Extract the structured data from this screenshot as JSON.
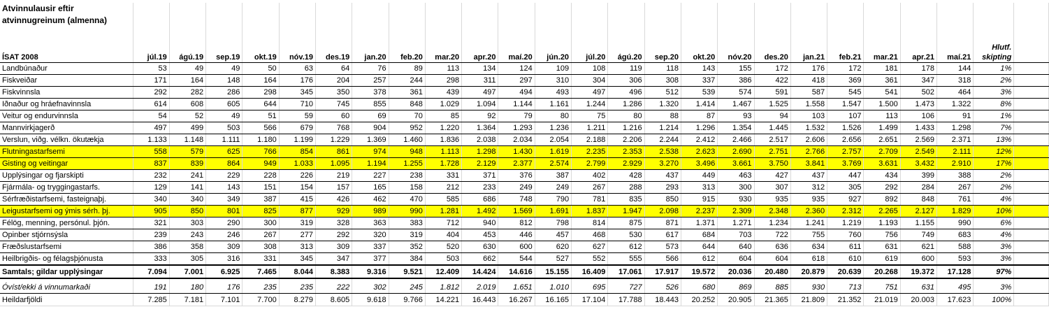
{
  "table": {
    "title": "Atvinnulausir eftir atvinnugreinum (almenna)",
    "row_header": "ÍSAT 2008",
    "columns": [
      "júl.19",
      "ágú.19",
      "sep.19",
      "okt.19",
      "nóv.19",
      "des.19",
      "jan.20",
      "feb.20",
      "mar.20",
      "apr.20",
      "maí.20",
      "jún.20",
      "júl.20",
      "ágú.20",
      "sep.20",
      "okt.20",
      "nóv.20",
      "des.20",
      "jan.21",
      "feb.21",
      "mar.21",
      "apr.21",
      "maí.21"
    ],
    "share_header": "Hlutf. skipting",
    "highlight_color": "#ffff00",
    "rows": [
      {
        "label": "Landbúnaður",
        "values": [
          "53",
          "49",
          "49",
          "50",
          "63",
          "64",
          "76",
          "89",
          "113",
          "134",
          "124",
          "109",
          "108",
          "119",
          "118",
          "143",
          "155",
          "172",
          "176",
          "172",
          "181",
          "178",
          "144"
        ],
        "share": "1%"
      },
      {
        "label": "Fiskveiðar",
        "values": [
          "171",
          "164",
          "148",
          "164",
          "176",
          "204",
          "257",
          "244",
          "298",
          "311",
          "297",
          "310",
          "304",
          "306",
          "308",
          "337",
          "386",
          "422",
          "418",
          "369",
          "361",
          "347",
          "318"
        ],
        "share": "2%"
      },
      {
        "label": "Fiskvinnsla",
        "values": [
          "292",
          "282",
          "286",
          "298",
          "345",
          "350",
          "378",
          "361",
          "439",
          "497",
          "494",
          "493",
          "497",
          "496",
          "512",
          "539",
          "574",
          "591",
          "587",
          "545",
          "541",
          "502",
          "464"
        ],
        "share": "3%"
      },
      {
        "label": "Iðnaður og hráefnavinnsla",
        "values": [
          "614",
          "608",
          "605",
          "644",
          "710",
          "745",
          "855",
          "848",
          "1.029",
          "1.094",
          "1.144",
          "1.161",
          "1.244",
          "1.286",
          "1.320",
          "1.414",
          "1.467",
          "1.525",
          "1.558",
          "1.547",
          "1.500",
          "1.473",
          "1.322"
        ],
        "share": "8%"
      },
      {
        "label": "Veitur og endurvinnsla",
        "values": [
          "54",
          "52",
          "49",
          "51",
          "59",
          "60",
          "69",
          "70",
          "85",
          "92",
          "79",
          "80",
          "75",
          "80",
          "88",
          "87",
          "93",
          "94",
          "103",
          "107",
          "113",
          "106",
          "91"
        ],
        "share": "1%"
      },
      {
        "label": "Mannvirkjagerð",
        "values": [
          "497",
          "499",
          "503",
          "566",
          "679",
          "768",
          "904",
          "952",
          "1.220",
          "1.364",
          "1.293",
          "1.236",
          "1.211",
          "1.216",
          "1.214",
          "1.296",
          "1.354",
          "1.445",
          "1.532",
          "1.526",
          "1.499",
          "1.433",
          "1.298"
        ],
        "share": "7%"
      },
      {
        "label": "Verslun, viðg. vélkn. ökutækja",
        "values": [
          "1.133",
          "1.148",
          "1.111",
          "1.180",
          "1.199",
          "1.229",
          "1.369",
          "1.460",
          "1.836",
          "2.038",
          "2.034",
          "2.054",
          "2.188",
          "2.206",
          "2.244",
          "2.412",
          "2.466",
          "2.517",
          "2.606",
          "2.656",
          "2.651",
          "2.569",
          "2.371"
        ],
        "share": "13%"
      },
      {
        "label": "Flutningastarfsemi",
        "highlight": true,
        "values": [
          "558",
          "579",
          "625",
          "766",
          "854",
          "861",
          "974",
          "948",
          "1.113",
          "1.298",
          "1.430",
          "1.619",
          "2.235",
          "2.353",
          "2.538",
          "2.623",
          "2.690",
          "2.751",
          "2.766",
          "2.757",
          "2.709",
          "2.549",
          "2.111"
        ],
        "share": "12%"
      },
      {
        "label": "Gisting og veitingar",
        "highlight": true,
        "values": [
          "837",
          "839",
          "864",
          "949",
          "1.033",
          "1.095",
          "1.194",
          "1.255",
          "1.728",
          "2.129",
          "2.377",
          "2.574",
          "2.799",
          "2.929",
          "3.270",
          "3.496",
          "3.661",
          "3.750",
          "3.841",
          "3.769",
          "3.631",
          "3.432",
          "2.910"
        ],
        "share": "17%"
      },
      {
        "label": "Upplýsingar og fjarskipti",
        "values": [
          "232",
          "241",
          "229",
          "228",
          "226",
          "219",
          "227",
          "238",
          "331",
          "371",
          "376",
          "387",
          "402",
          "428",
          "437",
          "449",
          "463",
          "427",
          "437",
          "447",
          "434",
          "399",
          "388"
        ],
        "share": "2%"
      },
      {
        "label": "Fjármála- og tryggingastarfs.",
        "values": [
          "129",
          "141",
          "143",
          "151",
          "154",
          "157",
          "165",
          "158",
          "212",
          "233",
          "249",
          "249",
          "267",
          "288",
          "293",
          "313",
          "300",
          "307",
          "312",
          "305",
          "292",
          "284",
          "267"
        ],
        "share": "2%"
      },
      {
        "label": "Sérfræðistarfsemi, fasteignaþj.",
        "values": [
          "340",
          "340",
          "349",
          "387",
          "415",
          "426",
          "462",
          "470",
          "585",
          "686",
          "748",
          "790",
          "781",
          "835",
          "850",
          "915",
          "930",
          "935",
          "935",
          "927",
          "892",
          "848",
          "761"
        ],
        "share": "4%"
      },
      {
        "label": "Leigustarfsemi og ýmis sérh. þj.",
        "highlight": true,
        "values": [
          "905",
          "850",
          "801",
          "825",
          "877",
          "929",
          "989",
          "990",
          "1.281",
          "1.492",
          "1.569",
          "1.691",
          "1.837",
          "1.947",
          "2.098",
          "2.237",
          "2.309",
          "2.348",
          "2.360",
          "2.312",
          "2.265",
          "2.127",
          "1.829"
        ],
        "share": "10%"
      },
      {
        "label": "Félög, menning, persónul. þjón.",
        "values": [
          "321",
          "303",
          "290",
          "300",
          "319",
          "328",
          "363",
          "383",
          "712",
          "940",
          "812",
          "798",
          "814",
          "875",
          "871",
          "1.371",
          "1.271",
          "1.234",
          "1.241",
          "1.219",
          "1.193",
          "1.155",
          "990"
        ],
        "share": "6%"
      },
      {
        "label": "Opinber stjórnsýsla",
        "values": [
          "239",
          "243",
          "246",
          "267",
          "277",
          "292",
          "320",
          "319",
          "404",
          "453",
          "446",
          "457",
          "468",
          "530",
          "617",
          "684",
          "703",
          "722",
          "755",
          "760",
          "756",
          "749",
          "683"
        ],
        "share": "4%"
      },
      {
        "label": "Fræðslustarfsemi",
        "values": [
          "386",
          "358",
          "309",
          "308",
          "313",
          "309",
          "337",
          "352",
          "520",
          "630",
          "600",
          "620",
          "627",
          "612",
          "573",
          "644",
          "640",
          "636",
          "634",
          "611",
          "631",
          "621",
          "588"
        ],
        "share": "3%"
      },
      {
        "label": "Heilbrigðis- og félagsþjónusta",
        "values": [
          "333",
          "305",
          "316",
          "331",
          "345",
          "347",
          "377",
          "384",
          "503",
          "662",
          "544",
          "527",
          "552",
          "555",
          "566",
          "612",
          "604",
          "604",
          "618",
          "610",
          "619",
          "600",
          "593"
        ],
        "share": "3%"
      }
    ],
    "total": {
      "label": "Samtals; gildar upplýsingar",
      "values": [
        "7.094",
        "7.001",
        "6.925",
        "7.465",
        "8.044",
        "8.383",
        "9.316",
        "9.521",
        "12.409",
        "14.424",
        "14.616",
        "15.155",
        "16.409",
        "17.061",
        "17.917",
        "19.572",
        "20.036",
        "20.480",
        "20.879",
        "20.639",
        "20.268",
        "19.372",
        "17.128"
      ],
      "share": "97%"
    },
    "unknown": {
      "label": "Óvíst/ekki á vinnumarkaði",
      "values": [
        "191",
        "180",
        "176",
        "235",
        "235",
        "222",
        "302",
        "245",
        "1.812",
        "2.019",
        "1.651",
        "1.010",
        "695",
        "727",
        "526",
        "680",
        "869",
        "885",
        "930",
        "713",
        "751",
        "631",
        "495"
      ],
      "share": "3%"
    },
    "grand_total": {
      "label": "Heildarfjöldi",
      "values": [
        "7.285",
        "7.181",
        "7.101",
        "7.700",
        "8.279",
        "8.605",
        "9.618",
        "9.766",
        "14.221",
        "16.443",
        "16.267",
        "16.165",
        "17.104",
        "17.788",
        "18.443",
        "20.252",
        "20.905",
        "21.365",
        "21.809",
        "21.352",
        "21.019",
        "20.003",
        "17.623"
      ],
      "share": "100%"
    }
  }
}
